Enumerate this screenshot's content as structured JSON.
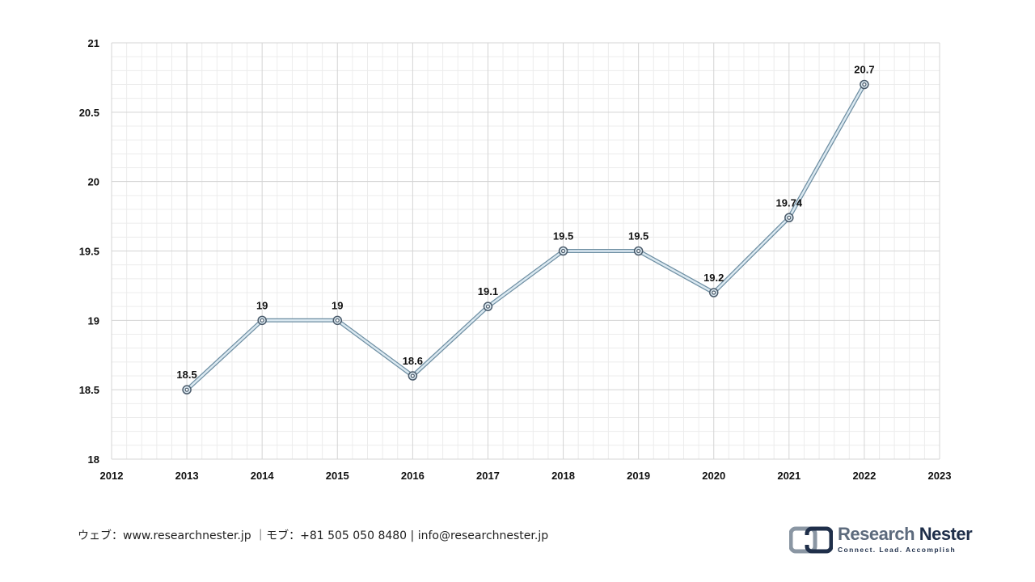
{
  "chart_data": {
    "type": "line",
    "x": [
      2013,
      2014,
      2015,
      2016,
      2017,
      2018,
      2019,
      2020,
      2021,
      2022
    ],
    "series": [
      {
        "values": [
          18.5,
          19,
          19,
          18.6,
          19.1,
          19.5,
          19.5,
          19.2,
          19.74,
          20.7
        ]
      }
    ],
    "data_labels": [
      "18.5",
      "19",
      "19",
      "18.6",
      "19.1",
      "19.5",
      "19.5",
      "19.2",
      "19.74",
      "20.7"
    ],
    "xlim": [
      2012,
      2023
    ],
    "ylim": [
      18,
      21
    ],
    "x_ticks": [
      "2012",
      "2013",
      "2014",
      "2015",
      "2016",
      "2017",
      "2018",
      "2019",
      "2020",
      "2021",
      "2022",
      "2023"
    ],
    "y_ticks": [
      "18",
      "18.5",
      "19",
      "19.5",
      "20",
      "20.5",
      "21"
    ],
    "title": "",
    "xlabel": "",
    "ylabel": "",
    "grid": true,
    "legend": "none",
    "colors": {
      "line": "#8fb4c8",
      "marker_edge": "#4a5a6a",
      "major_grid": "#d4d4d4",
      "minor_grid": "#ececec"
    }
  },
  "footer": {
    "contact": "ウェブ：www.researchnester.jp ｜モブ：+81 505 050 8480 | info@researchnester.jp"
  },
  "logo": {
    "name_part1": "Research",
    "name_part2": "Nester",
    "tagline": "Connect. Lead. Accomplish",
    "icon": "research-nester-logo-icon"
  }
}
